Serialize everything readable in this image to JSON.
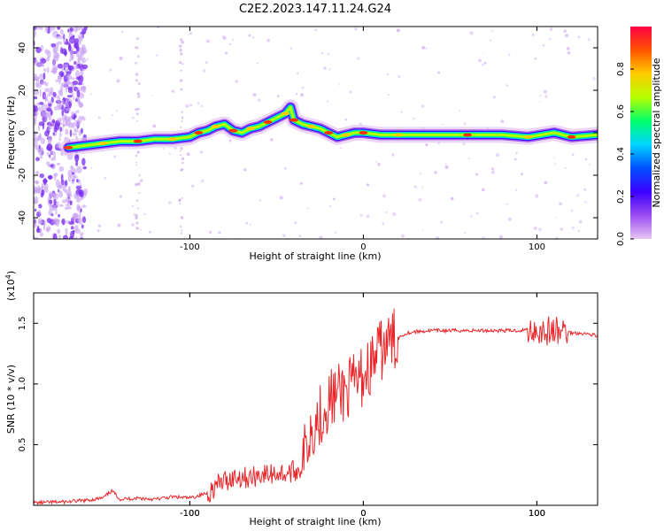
{
  "figure": {
    "title": "C2E2.2023.147.11.24.G24"
  },
  "chart_data": [
    {
      "type": "heatmap",
      "xlabel": "Height of straight line (km)",
      "ylabel": "Frequency (Hz)",
      "xlim": [
        -190,
        135
      ],
      "ylim": [
        -50,
        50
      ],
      "x_ticks": [
        -100,
        0,
        100
      ],
      "y_ticks": [
        -40,
        -20,
        0,
        20,
        40
      ],
      "colorbar": {
        "label": "Normalized spectral amplitude",
        "range": [
          0,
          1
        ],
        "ticks": [
          0.0,
          0.2,
          0.4,
          0.6,
          0.8
        ],
        "tick_labels": [
          "0.0",
          "0.2",
          "0.4",
          "0.6",
          "0.8"
        ],
        "colormap": [
          "#e6c6f2",
          "#9a4cf0",
          "#3b00ff",
          "#0050ff",
          "#00d5ff",
          "#00ff6a",
          "#b5ff00",
          "#ffcc00",
          "#ff5500",
          "#ff0044"
        ]
      },
      "ridge": {
        "x": [
          -170,
          -160,
          -150,
          -140,
          -130,
          -120,
          -110,
          -100,
          -95,
          -90,
          -85,
          -80,
          -75,
          -70,
          -65,
          -60,
          -55,
          -50,
          -45,
          -42,
          -40,
          -35,
          -30,
          -25,
          -20,
          -15,
          -10,
          -5,
          0,
          10,
          20,
          40,
          60,
          80,
          95,
          110,
          120,
          135
        ],
        "y": [
          -7,
          -6,
          -5,
          -4,
          -4,
          -3,
          -3,
          -2,
          0,
          1,
          3,
          4,
          1,
          0,
          2,
          3,
          5,
          7,
          9,
          12,
          6,
          4,
          3,
          2,
          0,
          -2,
          -1,
          0,
          0,
          -1,
          -1,
          -1,
          -1,
          -1,
          -2,
          0,
          -2,
          -1
        ]
      },
      "noise_region_x": [
        -190,
        -160
      ]
    },
    {
      "type": "line",
      "xlabel": "Height of straight line (km)",
      "ylabel": "SNR (10 * v/v)",
      "multiplier_label": "(x10",
      "multiplier_exponent": "4",
      "multiplier_close": ")",
      "xlim": [
        -190,
        135
      ],
      "ylim": [
        0,
        17500
      ],
      "x_ticks": [
        -100,
        0,
        100
      ],
      "y_ticks": [
        5000,
        10000,
        15000
      ],
      "y_tick_labels": [
        "0.5",
        "1.0",
        "1.5"
      ],
      "color": "#e8262a",
      "series": [
        {
          "x": [
            -190,
            -170,
            -160,
            -150,
            -145,
            -140,
            -130,
            -120,
            -110,
            -100,
            -95,
            -90,
            -85,
            -80,
            -75,
            -70,
            -65,
            -60,
            -55,
            -50,
            -45,
            -40,
            -36,
            -33,
            -30,
            -27,
            -24,
            -21,
            -18,
            -15,
            -12,
            -9,
            -6,
            -3,
            0,
            3,
            6,
            9,
            12,
            15,
            20,
            25,
            30,
            40,
            50,
            60,
            70,
            80,
            90,
            95,
            100,
            105,
            110,
            113,
            116,
            120,
            125,
            130,
            135
          ],
          "y": [
            200,
            300,
            400,
            600,
            1200,
            500,
            600,
            500,
            700,
            600,
            800,
            1000,
            1600,
            2000,
            2300,
            2400,
            2200,
            2600,
            2500,
            2700,
            2600,
            2800,
            3000,
            4800,
            6500,
            7000,
            7600,
            8400,
            8900,
            9000,
            9400,
            9500,
            9800,
            10200,
            10700,
            11300,
            11900,
            12600,
            13000,
            13400,
            13800,
            14200,
            14300,
            14400,
            14400,
            14400,
            14400,
            14400,
            14400,
            14500,
            14500,
            14300,
            14400,
            14200,
            14400,
            14200,
            14200,
            14100,
            14000
          ]
        }
      ]
    }
  ]
}
